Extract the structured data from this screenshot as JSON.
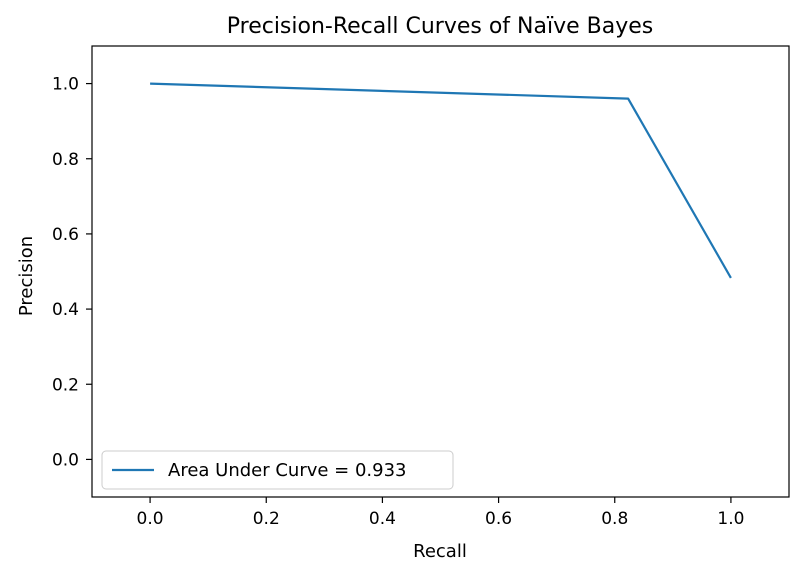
{
  "chart_data": {
    "type": "line",
    "title": "Precision-Recall Curves of Naïve Bayes",
    "xlabel": "Recall",
    "ylabel": "Precision",
    "xlim": [
      -0.1,
      1.1
    ],
    "ylim": [
      -0.1,
      1.1
    ],
    "xticks": [
      "0.0",
      "0.2",
      "0.4",
      "0.6",
      "0.8",
      "1.0"
    ],
    "yticks": [
      "0.0",
      "0.2",
      "0.4",
      "0.6",
      "0.8",
      "1.0"
    ],
    "grid": false,
    "legend_position": "lower-left",
    "series": [
      {
        "name": "Area Under Curve = 0.933",
        "color": "#1f77b4",
        "x": [
          0.0,
          0.823,
          1.0
        ],
        "y": [
          1.0,
          0.96,
          0.483
        ]
      }
    ]
  }
}
